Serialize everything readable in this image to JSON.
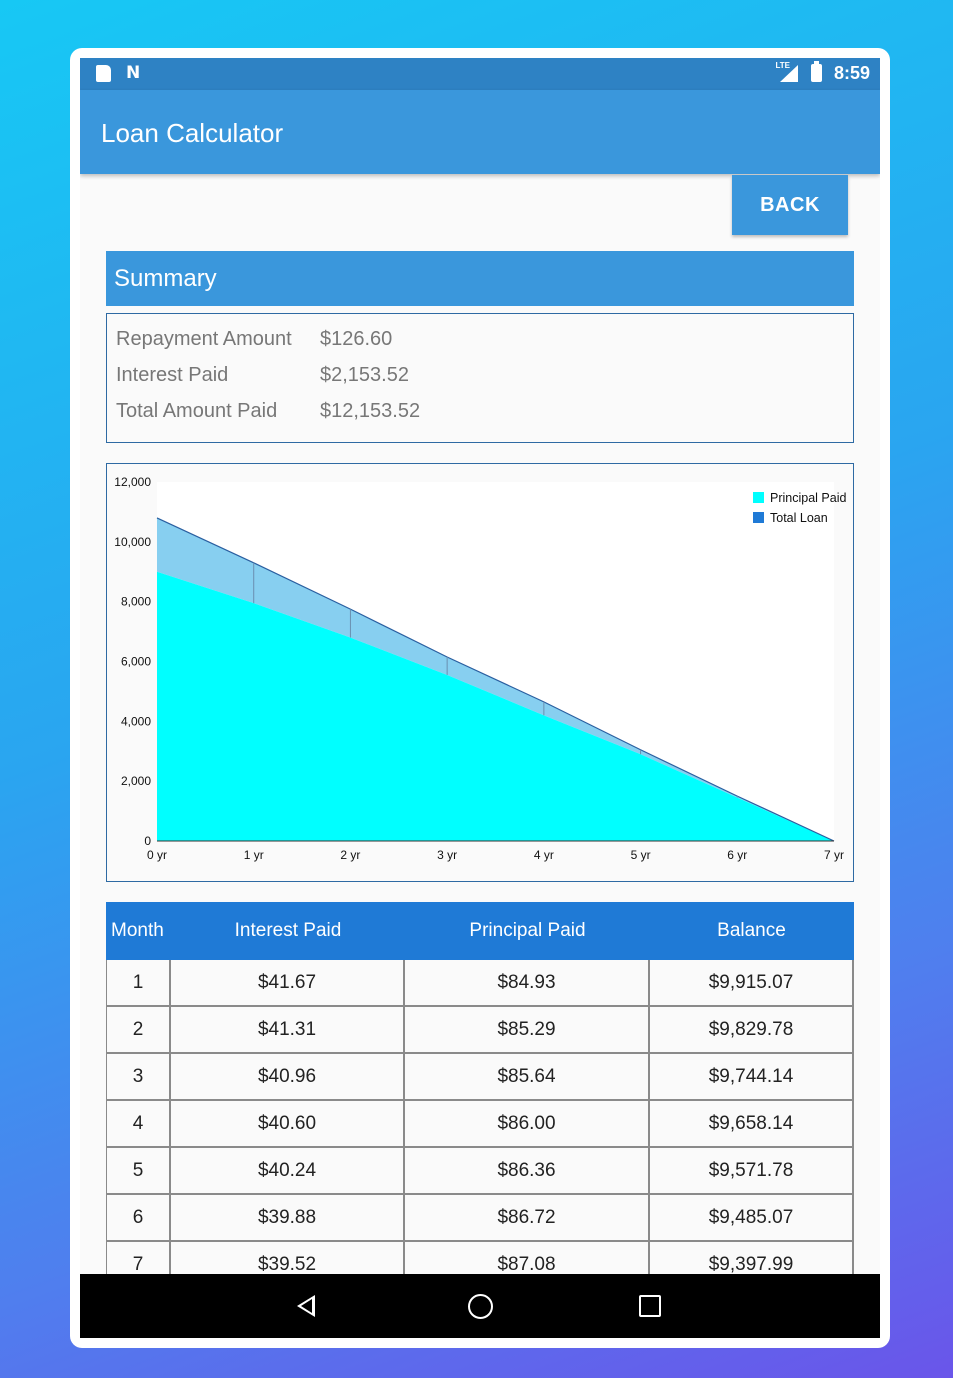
{
  "status_bar": {
    "time": "8:59",
    "network": "LTE",
    "icons": [
      "sd-card-icon",
      "n-notification-icon",
      "signal-icon",
      "battery-charging-icon"
    ]
  },
  "app_bar": {
    "title": "Loan Calculator"
  },
  "back_button": {
    "label": "BACK"
  },
  "summary": {
    "heading": "Summary",
    "rows": [
      {
        "label": "Repayment Amount",
        "value": "$126.60"
      },
      {
        "label": "Interest Paid",
        "value": "$2,153.52"
      },
      {
        "label": "Total Amount Paid",
        "value": "$12,153.52"
      }
    ]
  },
  "chart_data": {
    "type": "area",
    "x": [
      0,
      1,
      2,
      3,
      4,
      5,
      6,
      7
    ],
    "x_tick_labels": [
      "0 yr",
      "1 yr",
      "2 yr",
      "3 yr",
      "4 yr",
      "5 yr",
      "6 yr",
      "7 yr"
    ],
    "y_tick_labels": [
      "0",
      "2,000",
      "4,000",
      "6,000",
      "8,000",
      "10,000",
      "12,000"
    ],
    "ylim": [
      0,
      12000
    ],
    "xlim": [
      0,
      7
    ],
    "series": [
      {
        "name": "Principal Paid",
        "color": "#00ffff",
        "values": [
          9000,
          7950,
          6800,
          5550,
          4200,
          2900,
          1450,
          0
        ]
      },
      {
        "name": "Total Loan",
        "color": "#1f7ad6",
        "values": [
          10800,
          9300,
          7750,
          6150,
          4650,
          3050,
          1500,
          0
        ]
      }
    ],
    "legend_position": "top-right",
    "grid": false
  },
  "table": {
    "headers": [
      "Month",
      "Interest Paid",
      "Principal Paid",
      "Balance"
    ],
    "rows": [
      [
        "1",
        "$41.67",
        "$84.93",
        "$9,915.07"
      ],
      [
        "2",
        "$41.31",
        "$85.29",
        "$9,829.78"
      ],
      [
        "3",
        "$40.96",
        "$85.64",
        "$9,744.14"
      ],
      [
        "4",
        "$40.60",
        "$86.00",
        "$9,658.14"
      ],
      [
        "5",
        "$40.24",
        "$86.36",
        "$9,571.78"
      ],
      [
        "6",
        "$39.88",
        "$86.72",
        "$9,485.07"
      ],
      [
        "7",
        "$39.52",
        "$87.08",
        "$9,397.99"
      ]
    ]
  },
  "nav_bar": {
    "icons": [
      "back-icon",
      "home-icon",
      "recents-icon"
    ]
  }
}
